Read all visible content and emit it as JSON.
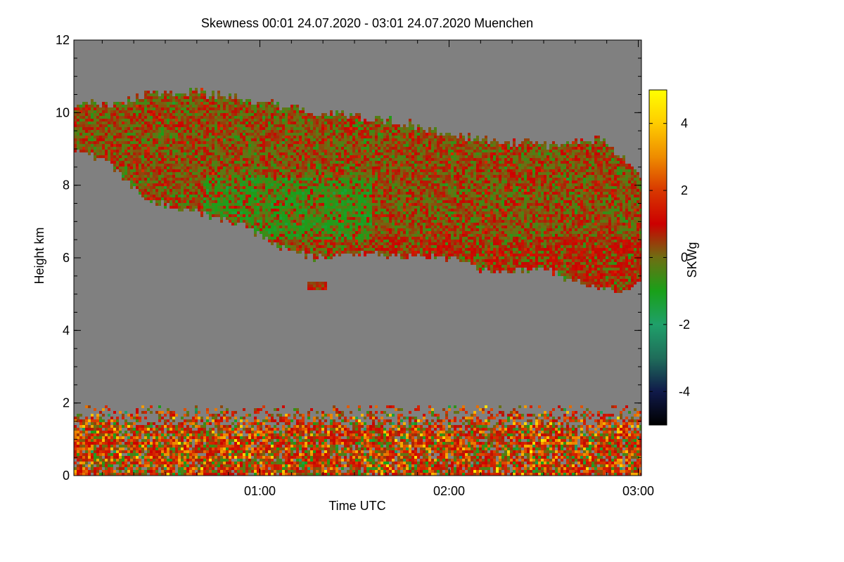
{
  "chart_data": {
    "type": "heatmap",
    "title": "Skewness   00:01 24.07.2020 - 03:01 24.07.2020 Muenchen",
    "xlabel": "Time UTC",
    "ylabel": "Height km",
    "x_range_hours": [
      0.0167,
      3.0167
    ],
    "y_range_km": [
      0,
      12
    ],
    "x_ticks": [
      {
        "label": "01:00",
        "hours": 1
      },
      {
        "label": "02:00",
        "hours": 2
      },
      {
        "label": "03:00",
        "hours": 3
      }
    ],
    "y_ticks": [
      {
        "label": "0",
        "km": 0
      },
      {
        "label": "2",
        "km": 2
      },
      {
        "label": "4",
        "km": 4
      },
      {
        "label": "6",
        "km": 6
      },
      {
        "label": "8",
        "km": 8
      },
      {
        "label": "10",
        "km": 10
      },
      {
        "label": "12",
        "km": 12
      }
    ],
    "background_color": "#808080",
    "colorbar": {
      "label": "SKWg",
      "range": [
        -5,
        5
      ],
      "ticks": [
        {
          "label": "4",
          "value": 4
        },
        {
          "label": "2",
          "value": 2
        },
        {
          "label": "0",
          "value": 0
        },
        {
          "label": "-2",
          "value": -2
        },
        {
          "label": "-4",
          "value": -4
        }
      ],
      "stops": [
        {
          "value": -5,
          "color": "#000000"
        },
        {
          "value": -4,
          "color": "#101a4a"
        },
        {
          "value": -3,
          "color": "#1f6d5a"
        },
        {
          "value": -2,
          "color": "#1fa06a"
        },
        {
          "value": -1,
          "color": "#19a019"
        },
        {
          "value": 0,
          "color": "#6e6e12"
        },
        {
          "value": 1,
          "color": "#cc0000"
        },
        {
          "value": 2,
          "color": "#d83800"
        },
        {
          "value": 3,
          "color": "#ee8c00"
        },
        {
          "value": 4,
          "color": "#ffcc00"
        },
        {
          "value": 5,
          "color": "#ffff00"
        }
      ]
    },
    "cloud_layer": {
      "top_km": [
        [
          0.0167,
          10.3
        ],
        [
          0.2,
          10.2
        ],
        [
          0.4,
          10.5
        ],
        [
          0.6,
          10.6
        ],
        [
          0.9,
          10.4
        ],
        [
          1.3,
          10.0
        ],
        [
          1.7,
          9.8
        ],
        [
          2.0,
          9.4
        ],
        [
          2.3,
          9.2
        ],
        [
          2.6,
          9.1
        ],
        [
          2.8,
          9.3
        ],
        [
          3.0167,
          8.2
        ]
      ],
      "base_km": [
        [
          0.0167,
          9.0
        ],
        [
          0.2,
          8.6
        ],
        [
          0.4,
          7.6
        ],
        [
          0.7,
          7.2
        ],
        [
          0.9,
          6.9
        ],
        [
          1.1,
          6.3
        ],
        [
          1.3,
          6.0
        ],
        [
          1.55,
          6.1
        ],
        [
          1.8,
          6.0
        ],
        [
          2.0,
          6.0
        ],
        [
          2.2,
          5.6
        ],
        [
          2.5,
          5.7
        ],
        [
          2.75,
          5.2
        ],
        [
          2.9,
          5.1
        ],
        [
          3.0167,
          5.4
        ]
      ],
      "dominant_skewness": 0.3
    },
    "cloud_fragment": {
      "x_hours": [
        1.25,
        1.35
      ],
      "y_km": [
        5.1,
        5.35
      ],
      "skewness": 0.5
    },
    "boundary_layer": {
      "top_km": 1.9,
      "dominant_skewness": 1.2
    }
  }
}
